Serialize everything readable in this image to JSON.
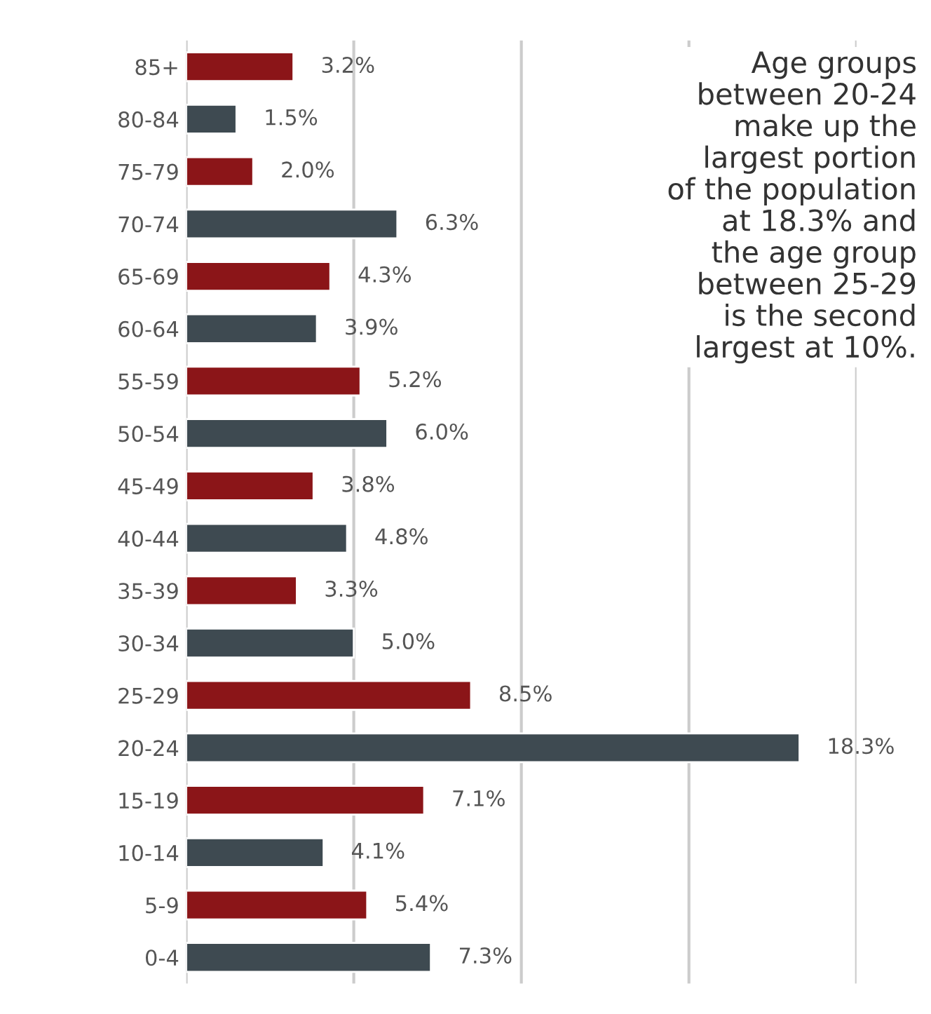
{
  "chart_data": {
    "type": "bar",
    "orientation": "horizontal",
    "categories": [
      "85+",
      "80-84",
      "75-79",
      "70-74",
      "65-69",
      "60-64",
      "55-59",
      "50-54",
      "45-49",
      "40-44",
      "35-39",
      "30-34",
      "25-29",
      "20-24",
      "15-19",
      "10-14",
      "5-9",
      "0-4"
    ],
    "values": [
      3.2,
      1.5,
      2.0,
      6.3,
      4.3,
      3.9,
      5.2,
      6.0,
      3.8,
      4.8,
      3.3,
      5.0,
      8.5,
      18.3,
      7.1,
      4.1,
      5.4,
      7.3
    ],
    "colors": [
      "#8b1518",
      "#3e4a51",
      "#8b1518",
      "#3e4a51",
      "#8b1518",
      "#3e4a51",
      "#8b1518",
      "#3e4a51",
      "#8b1518",
      "#3e4a51",
      "#8b1518",
      "#3e4a51",
      "#8b1518",
      "#3e4a51",
      "#8b1518",
      "#3e4a51",
      "#8b1518",
      "#3e4a51"
    ],
    "value_labels": [
      "3.2%",
      "1.5%",
      "2.0%",
      "6.3%",
      "4.3%",
      "3.9%",
      "5.2%",
      "6.0%",
      "3.8%",
      "4.8%",
      "3.3%",
      "5.0%",
      "8.5%",
      "18.3%",
      "7.1%",
      "4.1%",
      "5.4%",
      "7.3%"
    ],
    "xlim": [
      0,
      20
    ],
    "xticks": [
      {
        "value": 0,
        "label": null
      },
      {
        "value": 5,
        "label": null
      },
      {
        "value": 10,
        "label": null
      },
      {
        "value": 15,
        "label": null
      },
      {
        "value": 20,
        "label": null
      }
    ],
    "grid": "x",
    "annotations": [
      "Age groups\nbetween 20-24\nmake up the\nlargest portion\nof the population\nat 18.3% and\nthe age group\nbetween 25-29\nis the second\nlargest at 10%."
    ]
  }
}
